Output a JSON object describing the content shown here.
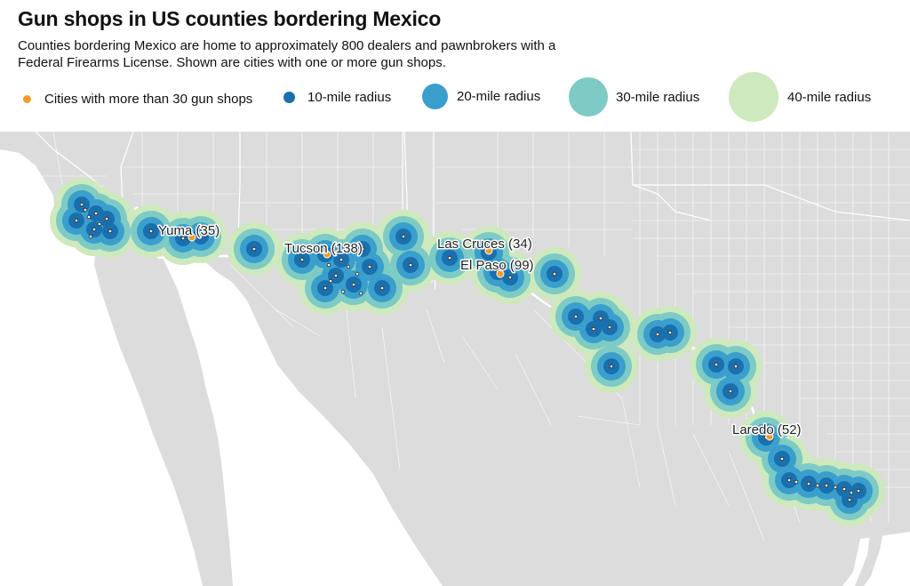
{
  "title": "Gun shops in US counties bordering Mexico",
  "subtitle": "Counties bordering Mexico are home to approximately 800 dealers and pawnbrokers with a Federal Firearms License. Shown are cities with one or more gun shops.",
  "legend": {
    "items": [
      {
        "label": "Cities with more than 30 gun shops",
        "color": "#f39a2a"
      },
      {
        "label": "10-mile radius",
        "color": "#1a6fad"
      },
      {
        "label": "20-mile radius",
        "color": "#3a9fcd"
      },
      {
        "label": "30-mile radius",
        "color": "#7dcbc4"
      },
      {
        "label": "40-mile radius",
        "color": "#cde9bd"
      }
    ]
  },
  "map": {
    "land_color": "#dcdcdc",
    "ocean_color": "#ffffff",
    "border_color": "#ffffff"
  },
  "cities": [
    {
      "name": "Yuma",
      "shops": 35,
      "label": "Yuma (35)"
    },
    {
      "name": "Tucson",
      "shops": 138,
      "label": "Tucson (138)"
    },
    {
      "name": "Las Cruces",
      "shops": 34,
      "label": "Las Cruces (34)"
    },
    {
      "name": "El Paso",
      "shops": 99,
      "label": "El Paso (99)"
    },
    {
      "name": "Laredo",
      "shops": 52,
      "label": "Laredo (52)"
    }
  ]
}
